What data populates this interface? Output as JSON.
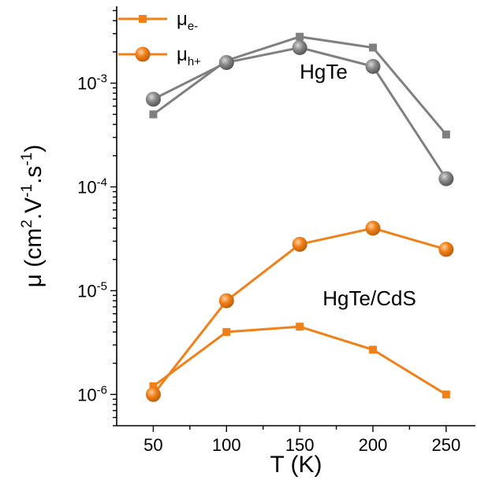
{
  "chart_data": {
    "type": "line",
    "xlabel": "T (K)",
    "ylabel": {
      "prefix": "μ (cm",
      "sup1": "2",
      "mid": ".V",
      "sup2": "-1",
      "mid2": ".s",
      "sup3": "-1",
      "suffix": ")"
    },
    "x_ticks": [
      50,
      100,
      150,
      200,
      250
    ],
    "xlim": [
      25,
      270
    ],
    "y_scale": "log",
    "ylim": [
      5e-07,
      0.0055
    ],
    "y_ticks": [
      {
        "value": 1e-06,
        "base": "10",
        "exp": "-6"
      },
      {
        "value": 1e-05,
        "base": "10",
        "exp": "-5"
      },
      {
        "value": 0.0001,
        "base": "10",
        "exp": "-4"
      },
      {
        "value": 0.001,
        "base": "10",
        "exp": "-3"
      }
    ],
    "legend": {
      "placement": "top-left",
      "entries": [
        {
          "symbol": "base",
          "sub": "e-",
          "marker": "square",
          "color": "#F08019"
        },
        {
          "symbol": "base",
          "sub": "h+",
          "marker": "circle",
          "color": "#F08019"
        }
      ],
      "base_symbol": "μ"
    },
    "annotations": [
      {
        "text": "HgTe",
        "x": 150,
        "y": 0.0011
      },
      {
        "text": "HgTe/CdS",
        "x": 170,
        "y": 7.2e-06
      }
    ],
    "series": [
      {
        "group": "HgTe",
        "carrier": "e-",
        "marker": "square",
        "color": "#808080",
        "x": [
          50,
          100,
          150,
          200,
          250
        ],
        "y": [
          0.0005,
          0.00165,
          0.0028,
          0.0022,
          0.00032
        ]
      },
      {
        "group": "HgTe",
        "carrier": "h+",
        "marker": "circle",
        "color": "#808080",
        "x": [
          50,
          100,
          150,
          200,
          250
        ],
        "y": [
          0.0007,
          0.00158,
          0.0022,
          0.00145,
          0.00012
        ]
      },
      {
        "group": "HgTe/CdS",
        "carrier": "e-",
        "marker": "square",
        "color": "#F08019",
        "x": [
          50,
          100,
          150,
          200,
          250
        ],
        "y": [
          1.2e-06,
          4e-06,
          4.5e-06,
          2.7e-06,
          1e-06
        ]
      },
      {
        "group": "HgTe/CdS",
        "carrier": "h+",
        "marker": "circle",
        "color": "#F08019",
        "x": [
          50,
          100,
          150,
          200,
          250
        ],
        "y": [
          1e-06,
          8e-06,
          2.8e-05,
          4e-05,
          2.5e-05
        ]
      }
    ],
    "grid": false
  }
}
